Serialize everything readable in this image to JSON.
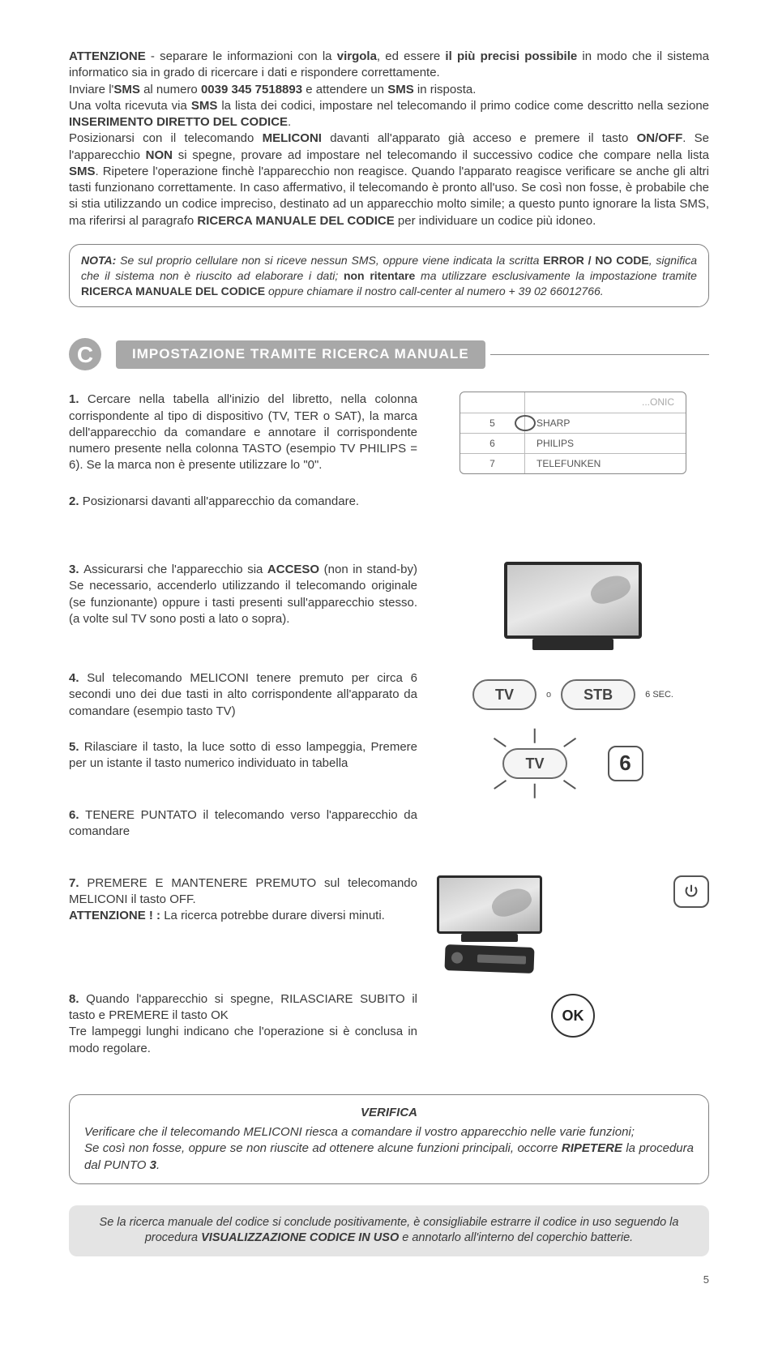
{
  "top_paragraph_html": "<b>ATTENZIONE</b> - separare le informazioni con la <b>virgola</b>, ed essere <b>il più precisi possibile</b> in modo che il sistema informatico sia in grado di ricercare i dati e rispondere correttamente.<br>Inviare l'<b>SMS</b> al numero <b>0039 345 7518893</b> e attendere un <b>SMS</b> in risposta.<br>Una volta ricevuta via <b>SMS</b> la lista dei codici, impostare nel telecomando il primo codice come descritto nella sezione <b>INSERIMENTO DIRETTO DEL CODICE</b>.<br>Posizionarsi con il telecomando <b>MELICONI</b> davanti all'apparato già acceso e premere il tasto <b>ON/OFF</b>. Se l'apparecchio <b>NON</b> si spegne, provare ad impostare nel telecomando il successivo codice che compare nella lista <b>SMS</b>. Ripetere l'operazione finchè l'apparecchio non reagisce. Quando l'apparato reagisce verificare se anche gli altri tasti funzionano correttamente. In caso affermativo, il telecomando è pronto all'uso. Se così non fosse, è probabile che si stia utilizzando un codice impreciso, destinato ad un apparecchio molto simile; a questo punto ignorare la lista SMS, ma riferirsi al paragrafo <b>RICERCA MANUALE DEL CODICE</b> per individuare un codice più idoneo.",
  "nota_html": "<span class='lead'><b><i>NOTA:</i></b></span> Se sul proprio cellulare non si riceve nessun SMS, oppure viene indicata la scritta <b>ERROR / NO CODE</b>, significa che il sistema non è riuscito ad elaborare i dati; <b>non ritentare</b> ma utilizzare esclusivamente la impostazione tramite <b>RICERCA MANUALE DEL CODICE</b> oppure chiamare il nostro call-center al numero + 39 02 66012766.",
  "section_letter": "C",
  "section_title": "IMPOSTAZIONE TRAMITE RICERCA MANUALE",
  "brand_rows": [
    {
      "n": "",
      "name": "...ONIC"
    },
    {
      "n": "5",
      "name": "SHARP"
    },
    {
      "n": "6",
      "name": "PHILIPS"
    },
    {
      "n": "7",
      "name": "TELEFUNKEN"
    }
  ],
  "steps": {
    "s1": "Cercare nella tabella all'inizio del libretto, nella colonna corrispondente al tipo di dispositivo (TV, TER o SAT), la marca dell'apparecchio da comandare e annotare il corrispondente numero presente nella colonna TASTO (esempio TV PHILIPS = 6). Se la marca non è presente utilizzare lo \"0\".",
    "s2": "Posizionarsi davanti all'apparecchio da comandare.",
    "s3_html": "Assicurarsi che l'apparecchio sia <b>ACCESO</b> (non in stand-by) Se necessario, accenderlo utilizzando il telecomando originale (se funzionante) oppure i tasti presenti sull'apparecchio stesso. (a volte sul TV sono posti a lato o sopra).",
    "s4": "Sul telecomando MELICONI tenere premuto per circa 6 secondi uno dei due tasti in alto corrispondente all'apparato da comandare (esempio tasto TV)",
    "s5": "Rilasciare il tasto, la luce sotto di esso lampeggia, Premere per un istante il tasto numerico individuato in tabella",
    "s6": "TENERE PUNTATO il telecomando verso l'apparecchio da comandare",
    "s7_html": "PREMERE E MANTENERE PREMUTO sul telecomando MELICONI il tasto OFF.<br><b>ATTENZIONE ! :</b> La ricerca potrebbe durare diversi minuti.",
    "s8": "Quando l'apparecchio si spegne, RILASCIARE SUBITO il tasto e PREMERE il tasto OK\nTre lampeggi lunghi indicano che l'operazione si è conclusa in modo regolare."
  },
  "btn_tv": "TV",
  "btn_stb": "STB",
  "sep_o": "o",
  "sec_label": "6 SEC.",
  "num6": "6",
  "ok_label": "OK",
  "verifica_title": "VERIFICA",
  "verifica_body_html": "Verificare che il telecomando MELICONI riesca a comandare il vostro apparecchio nelle varie funzioni;<br>Se così non fosse, oppure se non riuscite ad ottenere alcune funzioni principali, occorre <b>RIPETERE</b> la procedura dal PUNTO <b>3</b>.",
  "final_html": "Se la ricerca manuale del codice si conclude positivamente, è consigliabile estrarre il codice in uso seguendo la procedura <b>VISUALIZZAZIONE CODICE IN USO</b> e annotarlo all'interno del coperchio batterie.",
  "page_number": "5",
  "colors": {
    "grey_bar": "#a8a8a8",
    "text": "#3a3a3a",
    "border": "#808080",
    "final_bg": "#e4e4e4"
  }
}
